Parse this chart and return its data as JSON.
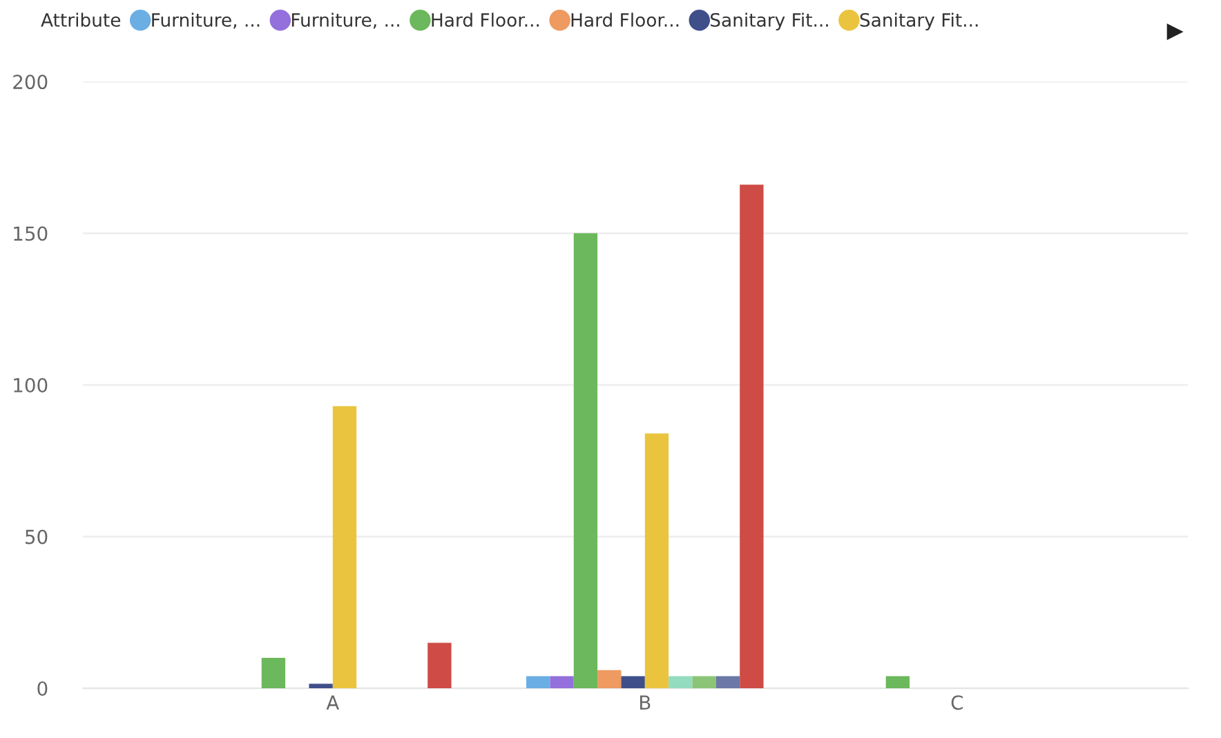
{
  "chart_data": {
    "type": "bar",
    "legend_title": "Attribute",
    "legend": "top left",
    "grid": "y",
    "categories": [
      "A",
      "B",
      "C"
    ],
    "ylim": [
      0,
      200
    ],
    "yticks": [
      0,
      50,
      100,
      150,
      200
    ],
    "series": [
      {
        "name": "Furniture, ...",
        "color": "#6aaee4",
        "values": [
          null,
          4,
          null
        ]
      },
      {
        "name": "Furniture, ...",
        "color": "#9370db",
        "values": [
          null,
          4,
          null
        ]
      },
      {
        "name": "Hard Floor...",
        "color": "#6cb85c",
        "values": [
          10,
          150,
          4
        ]
      },
      {
        "name": "Hard Floor...",
        "color": "#ef9a60",
        "values": [
          null,
          6,
          null
        ]
      },
      {
        "name": "Sanitary Fit...",
        "color": "#3f4f8a",
        "values": [
          1.5,
          4,
          null
        ]
      },
      {
        "name": "Sanitary Fit...",
        "color": "#ebc43f",
        "values": [
          93,
          84,
          null
        ]
      },
      {
        "color": "#93dcc0",
        "values": [
          null,
          4,
          null
        ]
      },
      {
        "color": "#8cc477",
        "values": [
          null,
          4,
          null
        ]
      },
      {
        "color": "#6b78a8",
        "values": [
          null,
          4,
          null
        ]
      },
      {
        "color": "#cf4b45",
        "values": [
          15,
          166,
          null
        ]
      }
    ]
  }
}
